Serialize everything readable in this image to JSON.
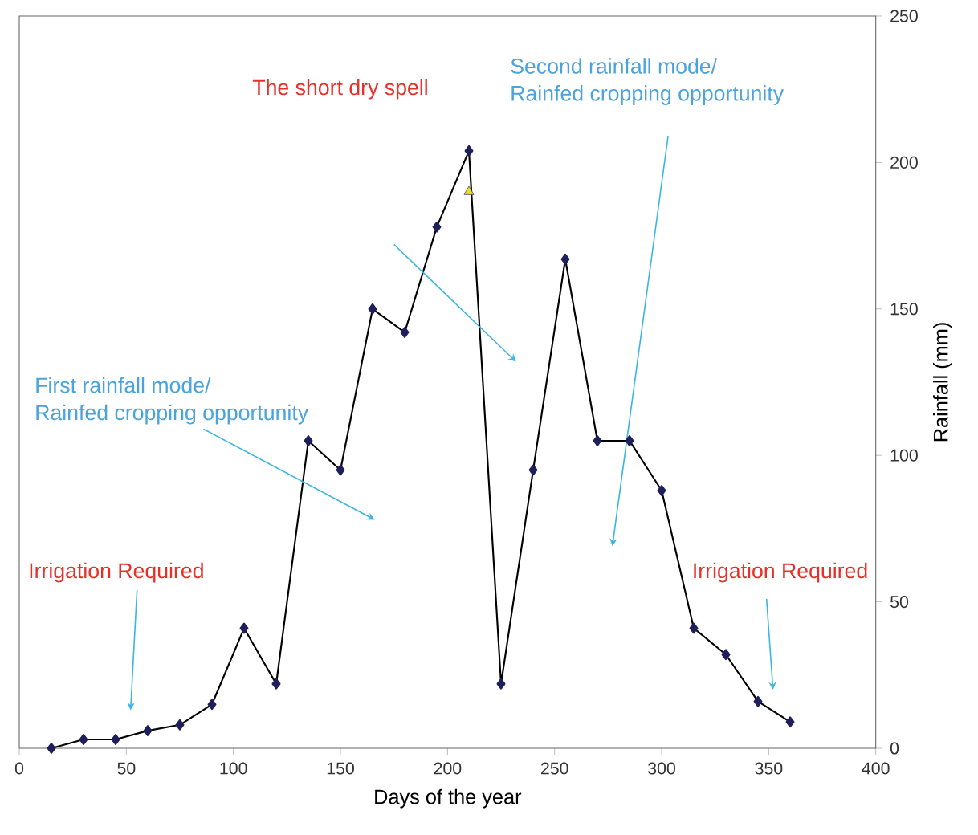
{
  "chart_data": {
    "type": "line",
    "xlabel": "Days of the year",
    "ylabel": "Rainfall (mm)",
    "xlim": [
      0,
      400
    ],
    "xticks": [
      0,
      50,
      100,
      150,
      200,
      250,
      300,
      350,
      400
    ],
    "ylim": [
      0,
      250
    ],
    "yticks": [
      0,
      50,
      100,
      150,
      200,
      250
    ],
    "marker": "diamond",
    "line_style": "solid",
    "series": [
      {
        "color": "#1f1f5c",
        "x": [
          15,
          30,
          45,
          60,
          75,
          90,
          105,
          120,
          135,
          150,
          165,
          180,
          195,
          210,
          225,
          240,
          255,
          270,
          285,
          300,
          315,
          330,
          345,
          360
        ],
        "values": [
          0,
          3,
          3,
          6,
          8,
          15,
          41,
          22,
          105,
          95,
          150,
          142,
          178,
          204,
          22,
          95,
          167,
          105,
          105,
          88,
          41,
          32,
          16,
          9
        ]
      },
      {
        "type": "scatter",
        "marker": "triangle",
        "color": "#e8e020",
        "x": [
          210
        ],
        "values": [
          190
        ]
      }
    ],
    "annotations": [
      "Irrigation Required",
      "First rainfall mode/",
      "Rainfed cropping opportunity",
      "The short dry spell",
      "Second rainfall mode/",
      "Rainfed cropping opportunity",
      "Irrigation Required"
    ]
  }
}
